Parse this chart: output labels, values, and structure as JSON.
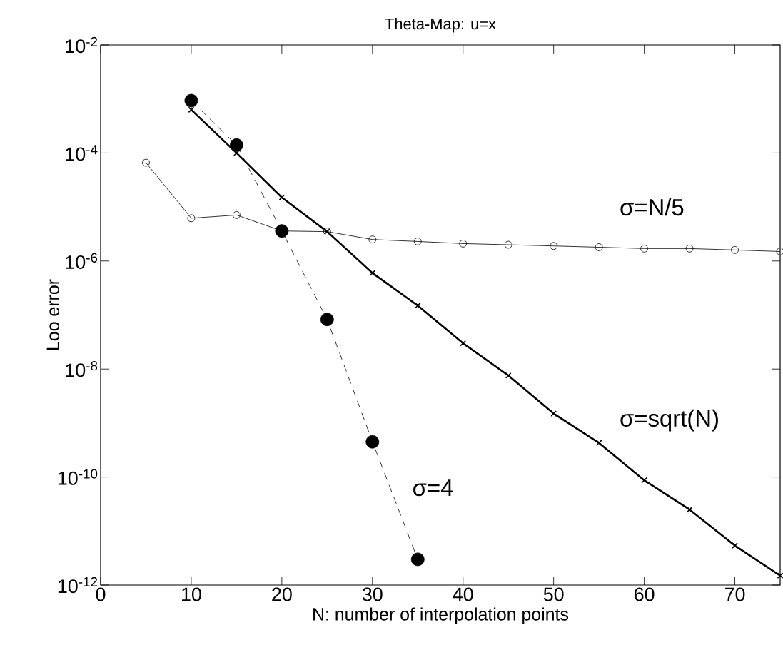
{
  "chart_data": {
    "type": "line",
    "title": "Theta-Map:  u=x",
    "xlabel": "N: number of interpolation points",
    "ylabel": "Loo error",
    "log": "y",
    "grid": false,
    "legend": false,
    "xlim": [
      0,
      75
    ],
    "xticks": [
      0,
      10,
      20,
      30,
      40,
      50,
      60,
      70
    ],
    "ylim": [
      1e-12,
      0.01
    ],
    "yticks": [
      {
        "value": 0.01,
        "label": "10$^{-2}$"
      },
      {
        "value": 0.0001,
        "label": "10$^{-4}$"
      },
      {
        "value": 1e-06,
        "label": "10$^{-6}$"
      },
      {
        "value": 1e-08,
        "label": "10$^{-8}$"
      },
      {
        "value": 1e-10,
        "label": "10$^{-10}$"
      },
      {
        "value": 1e-12,
        "label": "10$^{-12}$"
      }
    ],
    "series": [
      {
        "name": "σ=N/5",
        "color": "#000000",
        "marker": "circle",
        "line_style": "solid",
        "x": [
          5,
          10,
          15,
          20,
          25,
          30,
          35,
          40,
          45,
          50,
          55,
          60,
          65,
          70,
          75
        ],
        "values": [
          6.6e-05,
          6.2e-06,
          7.1e-06,
          3.6e-06,
          3.5e-06,
          2.5e-06,
          2.3e-06,
          2.1e-06,
          2e-06,
          1.9e-06,
          1.8e-06,
          1.7e-06,
          1.7e-06,
          1.6e-06,
          1.5e-06
        ]
      },
      {
        "name": "σ=sqrt(N)",
        "color": "#000000",
        "marker": "cross",
        "line_style": "solid",
        "x": [
          10,
          15,
          20,
          25,
          30,
          35,
          40,
          45,
          50,
          55,
          60,
          65,
          70,
          75
        ],
        "values": [
          0.00063,
          0.0001,
          1.5e-05,
          3.5e-06,
          6e-07,
          1.5e-07,
          3e-08,
          7.6e-09,
          1.5e-09,
          4.3e-10,
          8.7e-11,
          2.5e-11,
          5.4e-12,
          1.5e-12
        ]
      },
      {
        "name": "σ=4",
        "color": "#000000",
        "marker": "circle",
        "line_style": "dashed",
        "x": [
          10,
          15,
          20,
          25,
          30,
          35
        ],
        "values": [
          0.00093,
          0.00014,
          3.6e-06,
          8.3e-08,
          4.5e-10,
          3e-12
        ]
      }
    ]
  }
}
